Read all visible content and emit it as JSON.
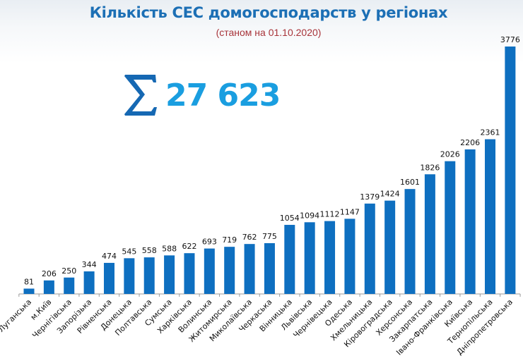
{
  "header": {
    "title": "Кількість СЕС домогосподарств у регіонах",
    "subtitle": "(станом на 01.10.2020)"
  },
  "summary": {
    "icon": "sigma-icon",
    "total_label": "27 623"
  },
  "colors": {
    "bar": "#0e6fc0",
    "title": "#1c6fb5",
    "subtitle": "#a8343a",
    "total": "#1a9ee0",
    "sigma": "#1568b3"
  },
  "chart_data": {
    "type": "bar",
    "title": "Кількість СЕС домогосподарств у регіонах",
    "subtitle": "(станом на 01.10.2020)",
    "xlabel": "",
    "ylabel": "",
    "ylim": [
      0,
      3776
    ],
    "grid": false,
    "legend": "none",
    "annotations": [
      "∑ 27 623"
    ],
    "categories": [
      "Луганська",
      "м.Київ",
      "Чернігівська",
      "Запорізька",
      "Рівненська",
      "Донецька",
      "Полтавська",
      "Сумська",
      "Харківська",
      "Волинська",
      "Житомирська",
      "Миколаївська",
      "Черкаська",
      "Вінницька",
      "Львівська",
      "Чернівецька",
      "Одеська",
      "Хмельницька",
      "Кіровоградська",
      "Херсонська",
      "Закарпатська",
      "Івано-Франківська",
      "Київська",
      "Тернопільська",
      "Дніпропетровська"
    ],
    "values": [
      81,
      206,
      250,
      344,
      474,
      545,
      558,
      588,
      622,
      693,
      719,
      762,
      775,
      1054,
      1094,
      1112,
      1147,
      1379,
      1424,
      1601,
      1826,
      2026,
      2206,
      2361,
      3776
    ]
  }
}
